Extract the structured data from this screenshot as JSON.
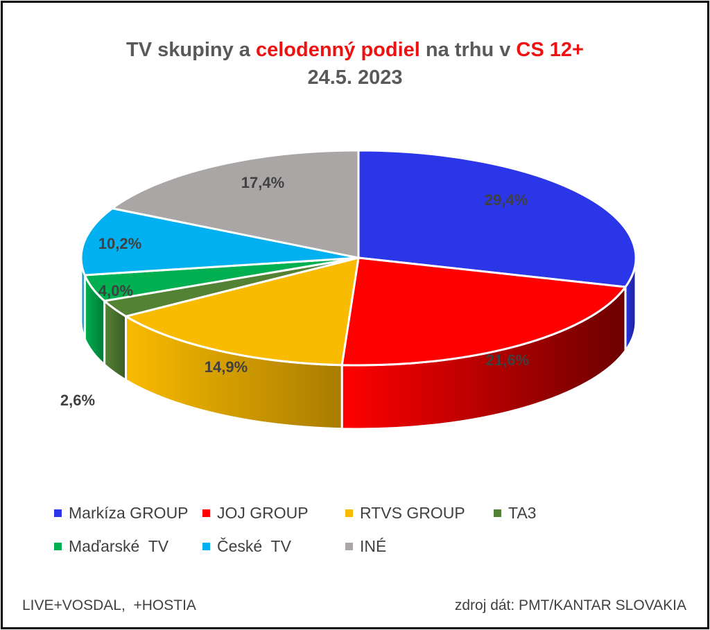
{
  "chart_data": {
    "type": "pie",
    "title_parts": [
      {
        "text": "TV skupiny a ",
        "highlight": false
      },
      {
        "text": "celodenný podiel",
        "highlight": true
      },
      {
        "text": " na trhu v ",
        "highlight": false
      },
      {
        "text": "CS 12+",
        "highlight": true
      }
    ],
    "subtitle": "24.5. 2023",
    "slices": [
      {
        "name": "Markíza GROUP",
        "value": 29.4,
        "label": "29,4%",
        "color": "#2b36e8",
        "side_color": "#1a2090"
      },
      {
        "name": "JOJ GROUP",
        "value": 21.6,
        "label": "21,6%",
        "color": "#ff0000",
        "side_color": "#6b0000"
      },
      {
        "name": "RTVS GROUP",
        "value": 14.9,
        "label": "14,9%",
        "color": "#f9bb00",
        "side_color": "#a97c00"
      },
      {
        "name": "TA3",
        "value": 2.6,
        "label": "2,6%",
        "color": "#548235",
        "side_color": "#3b5c25"
      },
      {
        "name": "Maďarské  TV",
        "value": 4.0,
        "label": "4,0%",
        "color": "#00b050",
        "side_color": "#007a37"
      },
      {
        "name": "České  TV",
        "value": 10.2,
        "label": "10,2%",
        "color": "#00b0f0",
        "side_color": "#0078a8"
      },
      {
        "name": "INÉ",
        "value": 17.4,
        "label": "17,4%",
        "color": "#aaa6a6",
        "side_color": "#777373"
      }
    ],
    "legend_position": "bottom",
    "three_d": true
  },
  "footer": {
    "left": "LIVE+VOSDAL,  +HOSTIA",
    "right": "zdroj dát: PMT/KANTAR SLOVAKIA"
  },
  "colors": {
    "highlight": "#ee1111",
    "text": "#595959",
    "label": "#404040"
  }
}
